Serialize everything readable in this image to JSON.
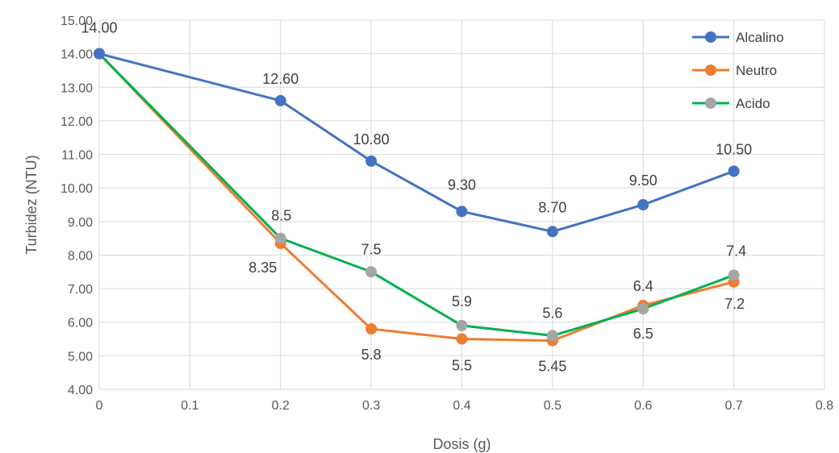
{
  "chart_data": {
    "type": "line",
    "title": "",
    "xlabel": "Dosis (g)",
    "ylabel": "Turbidez (NTU)",
    "xlim": [
      0,
      0.8
    ],
    "ylim": [
      4,
      15
    ],
    "x_ticks": [
      "0",
      "0.1",
      "0.2",
      "0.3",
      "0.4",
      "0.5",
      "0.6",
      "0.7",
      "0.8"
    ],
    "y_ticks": [
      "4.00",
      "5.00",
      "6.00",
      "7.00",
      "8.00",
      "9.00",
      "10.00",
      "11.00",
      "12.00",
      "13.00",
      "14.00",
      "15.00"
    ],
    "grid": true,
    "legend_position": "top-right",
    "series": [
      {
        "name": "Alcalino",
        "color": "#4472C4",
        "x": [
          0,
          0.2,
          0.3,
          0.4,
          0.5,
          0.6,
          0.7
        ],
        "y": [
          14.0,
          12.6,
          10.8,
          9.3,
          8.7,
          9.5,
          10.5
        ],
        "labels": [
          "14.00",
          "12.60",
          "10.80",
          "9.30",
          "8.70",
          "9.50",
          "10.50"
        ]
      },
      {
        "name": "Neutro",
        "color": "#ED7D31",
        "x": [
          0,
          0.2,
          0.3,
          0.4,
          0.5,
          0.6,
          0.7
        ],
        "y": [
          14.0,
          8.35,
          5.8,
          5.5,
          5.45,
          6.5,
          7.2
        ],
        "labels": [
          "",
          "8.35",
          "5.8",
          "5.5",
          "5.45",
          "6.5",
          "7.2"
        ]
      },
      {
        "name": "Acido",
        "color": "#00B050",
        "marker_color": "#A5A5A5",
        "x": [
          0,
          0.2,
          0.3,
          0.4,
          0.5,
          0.6,
          0.7
        ],
        "y": [
          14.0,
          8.5,
          7.5,
          5.9,
          5.6,
          6.4,
          7.4
        ],
        "labels": [
          "",
          "8.5",
          "7.5",
          "5.9",
          "5.6",
          "6.4",
          "7.4"
        ]
      }
    ]
  }
}
